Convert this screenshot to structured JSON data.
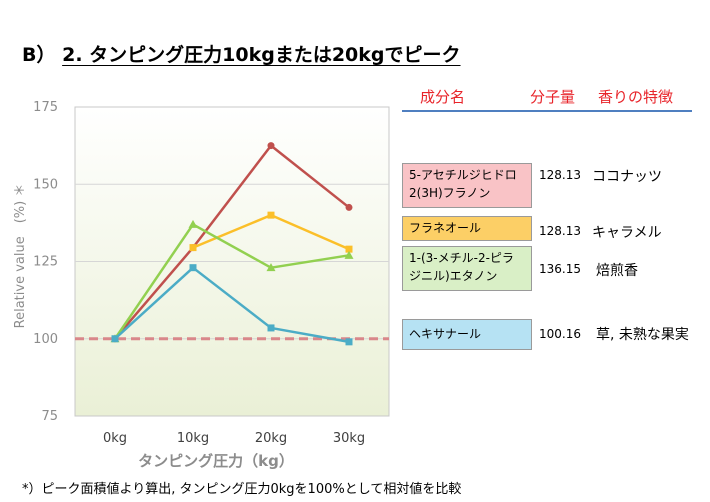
{
  "title": {
    "prefix": "B）",
    "text": "2.  タンピング圧力10kgまたは20kgでピーク"
  },
  "table": {
    "headers": {
      "component": "成分名",
      "mw": "分子量",
      "aroma": "香りの特徴"
    },
    "rows": [
      {
        "name": "5-アセチルジヒドロ2(3H)フラノン",
        "mw": "128.13",
        "aroma": "ココナッツ",
        "color": "#f9c3c6"
      },
      {
        "name": "フラネオール",
        "mw": "128.13",
        "aroma": "キャラメル",
        "color": "#fccf66"
      },
      {
        "name": "1-(3-メチル-2-ピラジニル)エタノン",
        "mw": "136.15",
        "aroma": "焙煎香",
        "color": "#d9efc6"
      },
      {
        "name": "ヘキサナール",
        "mw": "100.16",
        "aroma": "草, 未熟な果実",
        "color": "#b6e2f3"
      }
    ]
  },
  "chart_data": {
    "type": "line",
    "categories": [
      "0kg",
      "10kg",
      "20kg",
      "30kg"
    ],
    "xlabel": "タンピング圧力（kg）",
    "ylabel": "Relative value　(%) ＊",
    "ylim": [
      75,
      175
    ],
    "yticks": [
      75,
      100,
      125,
      150,
      175
    ],
    "grid": true,
    "reference_line": {
      "value": 100,
      "color": "#d9878a",
      "style": "dashed"
    },
    "series": [
      {
        "values": [
          100,
          129.5,
          162.5,
          142.5
        ],
        "color": "#c0504d",
        "marker": "circle"
      },
      {
        "values": [
          null,
          129.5,
          140,
          129
        ],
        "color": "#fbbf29",
        "marker": "square"
      },
      {
        "values": [
          100,
          137,
          123,
          127
        ],
        "color": "#92d050",
        "marker": "triangle"
      },
      {
        "values": [
          100,
          123,
          103.5,
          99
        ],
        "color": "#4bacc6",
        "marker": "square"
      }
    ]
  },
  "footnote": "*）ピーク面積値より算出, タンピング圧力0kgを100%として相対値を比較"
}
